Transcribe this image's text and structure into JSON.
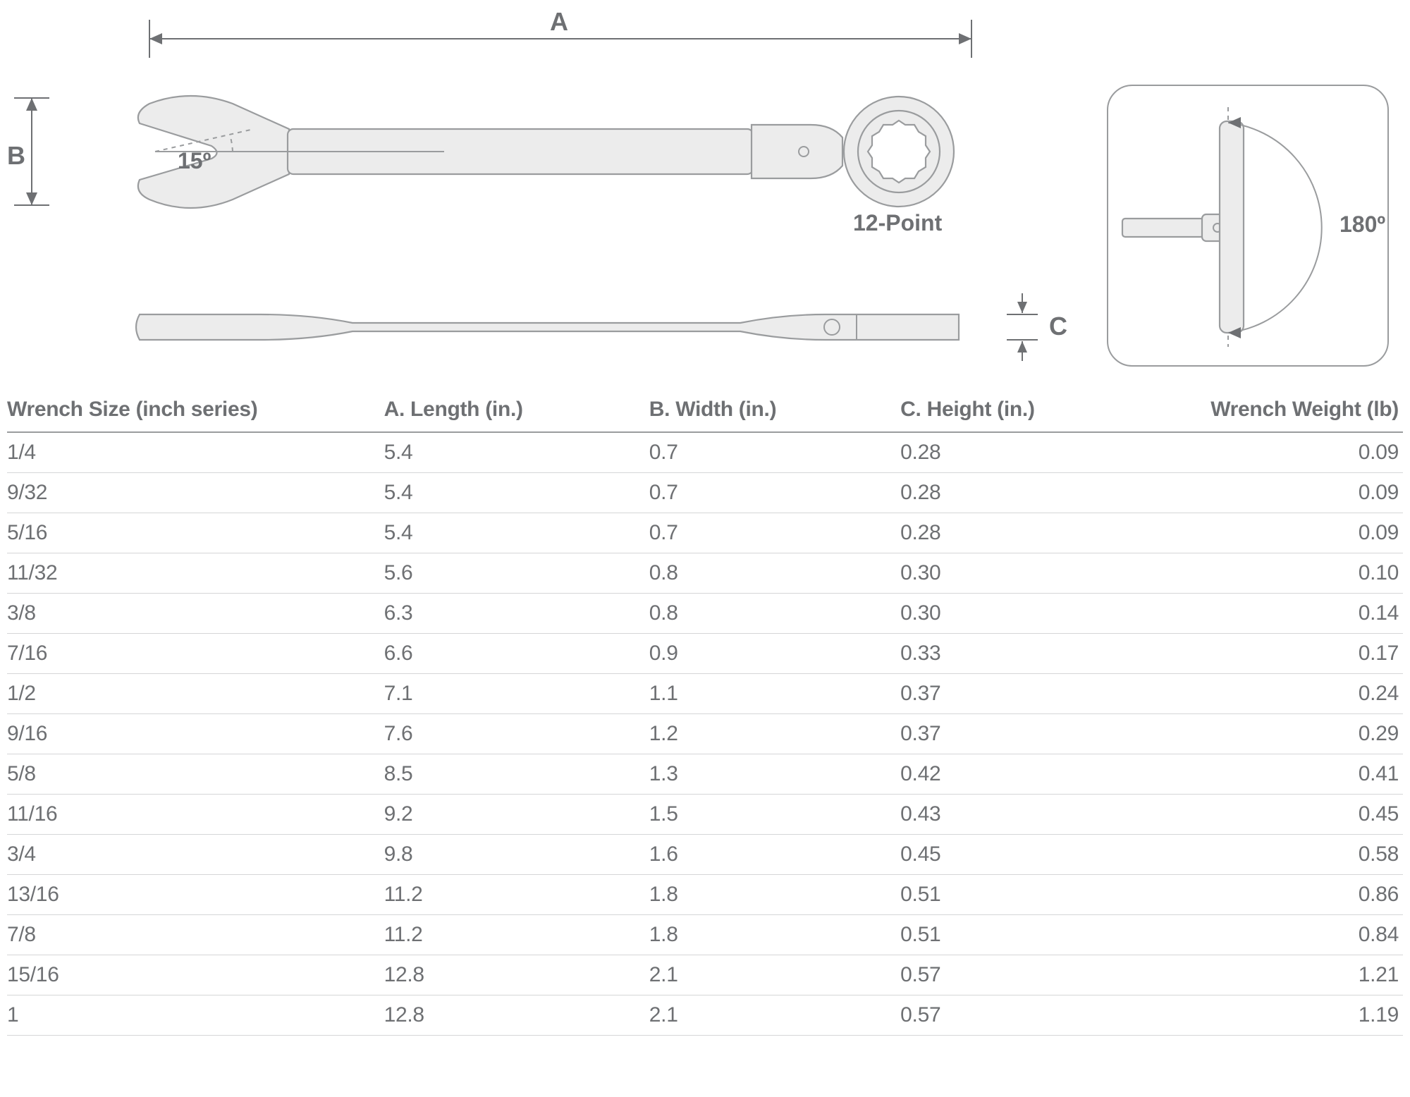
{
  "diagram": {
    "dim_a_label": "A",
    "dim_b_label": "B",
    "dim_c_label": "C",
    "open_end_angle": "15º",
    "box_end_label": "12-Point",
    "flex_angle": "180º",
    "colors": {
      "part_fill": "#ececec",
      "part_stroke": "#9a9c9e",
      "text": "#6e7073",
      "bg": "#ffffff"
    }
  },
  "table": {
    "columns": [
      "Wrench Size (inch series)",
      "A. Length (in.)",
      "B. Width (in.)",
      "C. Height (in.)",
      "Wrench Weight (lb)"
    ],
    "rows": [
      [
        "1/4",
        "5.4",
        "0.7",
        "0.28",
        "0.09"
      ],
      [
        "9/32",
        "5.4",
        "0.7",
        "0.28",
        "0.09"
      ],
      [
        "5/16",
        "5.4",
        "0.7",
        "0.28",
        "0.09"
      ],
      [
        "11/32",
        "5.6",
        "0.8",
        "0.30",
        "0.10"
      ],
      [
        "3/8",
        "6.3",
        "0.8",
        "0.30",
        "0.14"
      ],
      [
        "7/16",
        "6.6",
        "0.9",
        "0.33",
        "0.17"
      ],
      [
        "1/2",
        "7.1",
        "1.1",
        "0.37",
        "0.24"
      ],
      [
        "9/16",
        "7.6",
        "1.2",
        "0.37",
        "0.29"
      ],
      [
        "5/8",
        "8.5",
        "1.3",
        "0.42",
        "0.41"
      ],
      [
        "11/16",
        "9.2",
        "1.5",
        "0.43",
        "0.45"
      ],
      [
        "3/4",
        "9.8",
        "1.6",
        "0.45",
        "0.58"
      ],
      [
        "13/16",
        "11.2",
        "1.8",
        "0.51",
        "0.86"
      ],
      [
        "7/8",
        "11.2",
        "1.8",
        "0.51",
        "0.84"
      ],
      [
        "15/16",
        "12.8",
        "2.1",
        "0.57",
        "1.21"
      ],
      [
        "1",
        "12.8",
        "2.1",
        "0.57",
        "1.19"
      ]
    ]
  }
}
